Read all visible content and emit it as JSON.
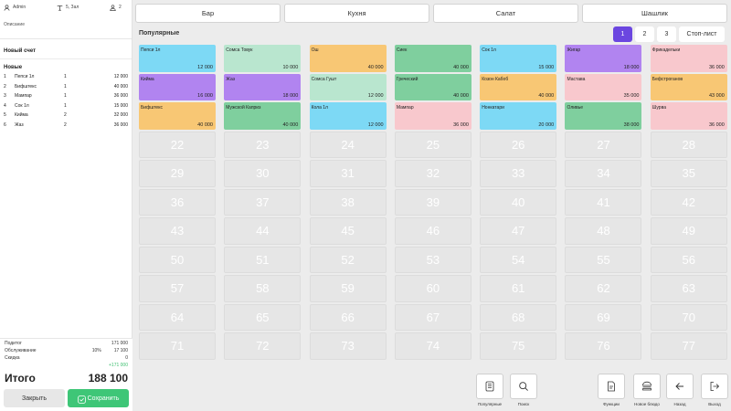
{
  "header": {
    "user": "Admin",
    "table": "5, Зал",
    "guests": "2"
  },
  "order": {
    "description_label": "Описание",
    "title": "Новый счет",
    "section": "Новые",
    "items": [
      {
        "n": "1",
        "name": "Пепси 1л",
        "qty": "1",
        "price": "12 000"
      },
      {
        "n": "2",
        "name": "Бифштекс",
        "qty": "1",
        "price": "40 000"
      },
      {
        "n": "3",
        "name": "Мампар",
        "qty": "1",
        "price": "36 000"
      },
      {
        "n": "4",
        "name": "Сок 1л",
        "qty": "1",
        "price": "15 000"
      },
      {
        "n": "5",
        "name": "Кийма",
        "qty": "2",
        "price": "32 000"
      },
      {
        "n": "6",
        "name": "Жаз",
        "qty": "2",
        "price": "36 000"
      }
    ]
  },
  "totals": {
    "subtotal_label": "Подитог",
    "subtotal": "171 000",
    "service_label": "Обслуживание",
    "service_pct": "10%",
    "service": "17 100",
    "discount_label": "Скидка",
    "discount": "0",
    "delta": "+171 000",
    "grand_label": "Итого",
    "grand": "188 100",
    "close_label": "Закрыть",
    "save_label": "Сохранить"
  },
  "categories": [
    "Бар",
    "Кухня",
    "Салат",
    "Шашлик"
  ],
  "page_title": "Популярные",
  "pager": {
    "pages": [
      "1",
      "2",
      "3"
    ],
    "active": "1",
    "stop_label": "Стоп-лист"
  },
  "colors": {
    "blue": "#7dd9f5",
    "green_light": "#b9e6cf",
    "orange": "#f8c774",
    "green": "#7fcf9e",
    "purple": "#b184f0",
    "pink": "#f8c8cd",
    "accent": "#6b46e0",
    "save": "#3ec677"
  },
  "menu_items": [
    {
      "name": "Пепси 1л",
      "price": "12 000",
      "color": "#7dd9f5"
    },
    {
      "name": "Сомса Товук",
      "price": "10 000",
      "color": "#b9e6cf"
    },
    {
      "name": "Ош",
      "price": "40 000",
      "color": "#f8c774"
    },
    {
      "name": "Сиек",
      "price": "40 000",
      "color": "#7fcf9e"
    },
    {
      "name": "Сок 1л",
      "price": "15 000",
      "color": "#7dd9f5"
    },
    {
      "name": "Жигар",
      "price": "18 000",
      "color": "#b184f0"
    },
    {
      "name": "Фрикадельки",
      "price": "36 000",
      "color": "#f8c8cd"
    },
    {
      "name": "Кийма",
      "price": "16 000",
      "color": "#b184f0"
    },
    {
      "name": "Жаз",
      "price": "18 000",
      "color": "#b184f0"
    },
    {
      "name": "Сомса Гушт",
      "price": "12 000",
      "color": "#b9e6cf"
    },
    {
      "name": "Греческий",
      "price": "40 000",
      "color": "#7fcf9e"
    },
    {
      "name": "Козон Кабоб",
      "price": "40 000",
      "color": "#f8c774"
    },
    {
      "name": "Мастава",
      "price": "35 000",
      "color": "#f8c8cd"
    },
    {
      "name": "Бефстроганов",
      "price": "43 000",
      "color": "#f8c774"
    },
    {
      "name": "Бифштекс",
      "price": "40 000",
      "color": "#f8c774"
    },
    {
      "name": "Мужской Каприз",
      "price": "40 000",
      "color": "#7fcf9e"
    },
    {
      "name": "Кола 1л",
      "price": "12 000",
      "color": "#7dd9f5"
    },
    {
      "name": "Мампар",
      "price": "36 000",
      "color": "#f8c8cd"
    },
    {
      "name": "Нонкатари",
      "price": "20 000",
      "color": "#7dd9f5"
    },
    {
      "name": "Оливье",
      "price": "38 000",
      "color": "#7fcf9e"
    },
    {
      "name": "Шурва",
      "price": "36 000",
      "color": "#f8c8cd"
    }
  ],
  "empty_cells": [
    "22",
    "23",
    "24",
    "25",
    "26",
    "27",
    "28",
    "29",
    "30",
    "31",
    "32",
    "33",
    "34",
    "35",
    "36",
    "37",
    "38",
    "39",
    "40",
    "41",
    "42",
    "43",
    "44",
    "45",
    "46",
    "47",
    "48",
    "49",
    "50",
    "51",
    "52",
    "53",
    "54",
    "55",
    "56",
    "57",
    "58",
    "59",
    "60",
    "61",
    "62",
    "63",
    "64",
    "65",
    "66",
    "67",
    "68",
    "69",
    "70",
    "71",
    "72",
    "73",
    "74",
    "75",
    "76",
    "77"
  ],
  "actions": [
    {
      "label": "Популярные",
      "icon": "document-list-icon"
    },
    {
      "label": "Поиск",
      "icon": "search-icon"
    },
    {
      "label": "Функции",
      "icon": "file-icon"
    },
    {
      "label": "Новое блюдо",
      "icon": "burger-icon"
    },
    {
      "label": "Назад",
      "icon": "arrow-left-icon"
    },
    {
      "label": "Выход",
      "icon": "exit-icon"
    }
  ]
}
